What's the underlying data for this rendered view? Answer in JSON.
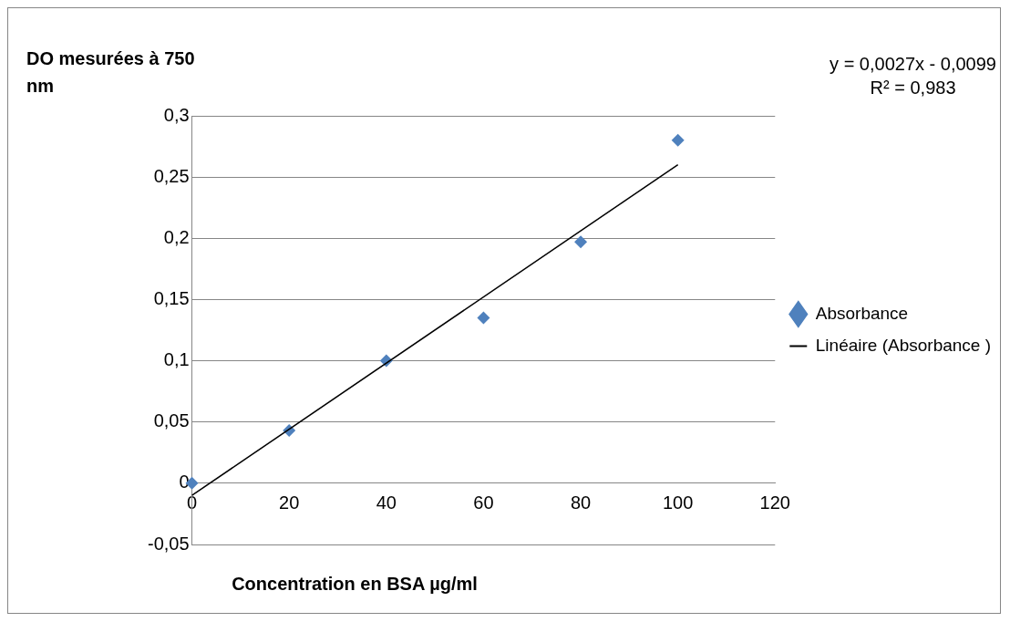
{
  "chart_data": {
    "type": "scatter",
    "xlabel": "Concentration en BSA µg/ml",
    "ylabel": "DO mesurées à 750 nm",
    "annotations": [
      "y = 0,0027x - 0,0099",
      "R² = 0,983"
    ],
    "series": [
      {
        "name": "Absorbance",
        "color": "#4f81bd",
        "marker": "diamond",
        "x": [
          0,
          20,
          40,
          60,
          80,
          100
        ],
        "values": [
          0,
          0.043,
          0.1,
          0.135,
          0.197,
          0.28
        ]
      },
      {
        "name": "Linéaire (Absorbance )",
        "type": "line",
        "color": "#000000",
        "marker": "none",
        "x": [
          0,
          100
        ],
        "values": [
          -0.0099,
          0.2601
        ]
      }
    ],
    "xlim": [
      0,
      120
    ],
    "xticks": [
      0,
      20,
      40,
      60,
      80,
      100,
      120
    ],
    "ylim": [
      -0.05,
      0.3
    ],
    "yticks": [
      {
        "value": -0.05,
        "label": "-0,05"
      },
      {
        "value": 0,
        "label": "0"
      },
      {
        "value": 0.05,
        "label": "0,05"
      },
      {
        "value": 0.1,
        "label": "0,1"
      },
      {
        "value": 0.15,
        "label": "0,15"
      },
      {
        "value": 0.2,
        "label": "0,2"
      },
      {
        "value": 0.25,
        "label": "0,25"
      },
      {
        "value": 0.3,
        "label": "0,3"
      }
    ],
    "grid": "y",
    "legend": "right"
  }
}
